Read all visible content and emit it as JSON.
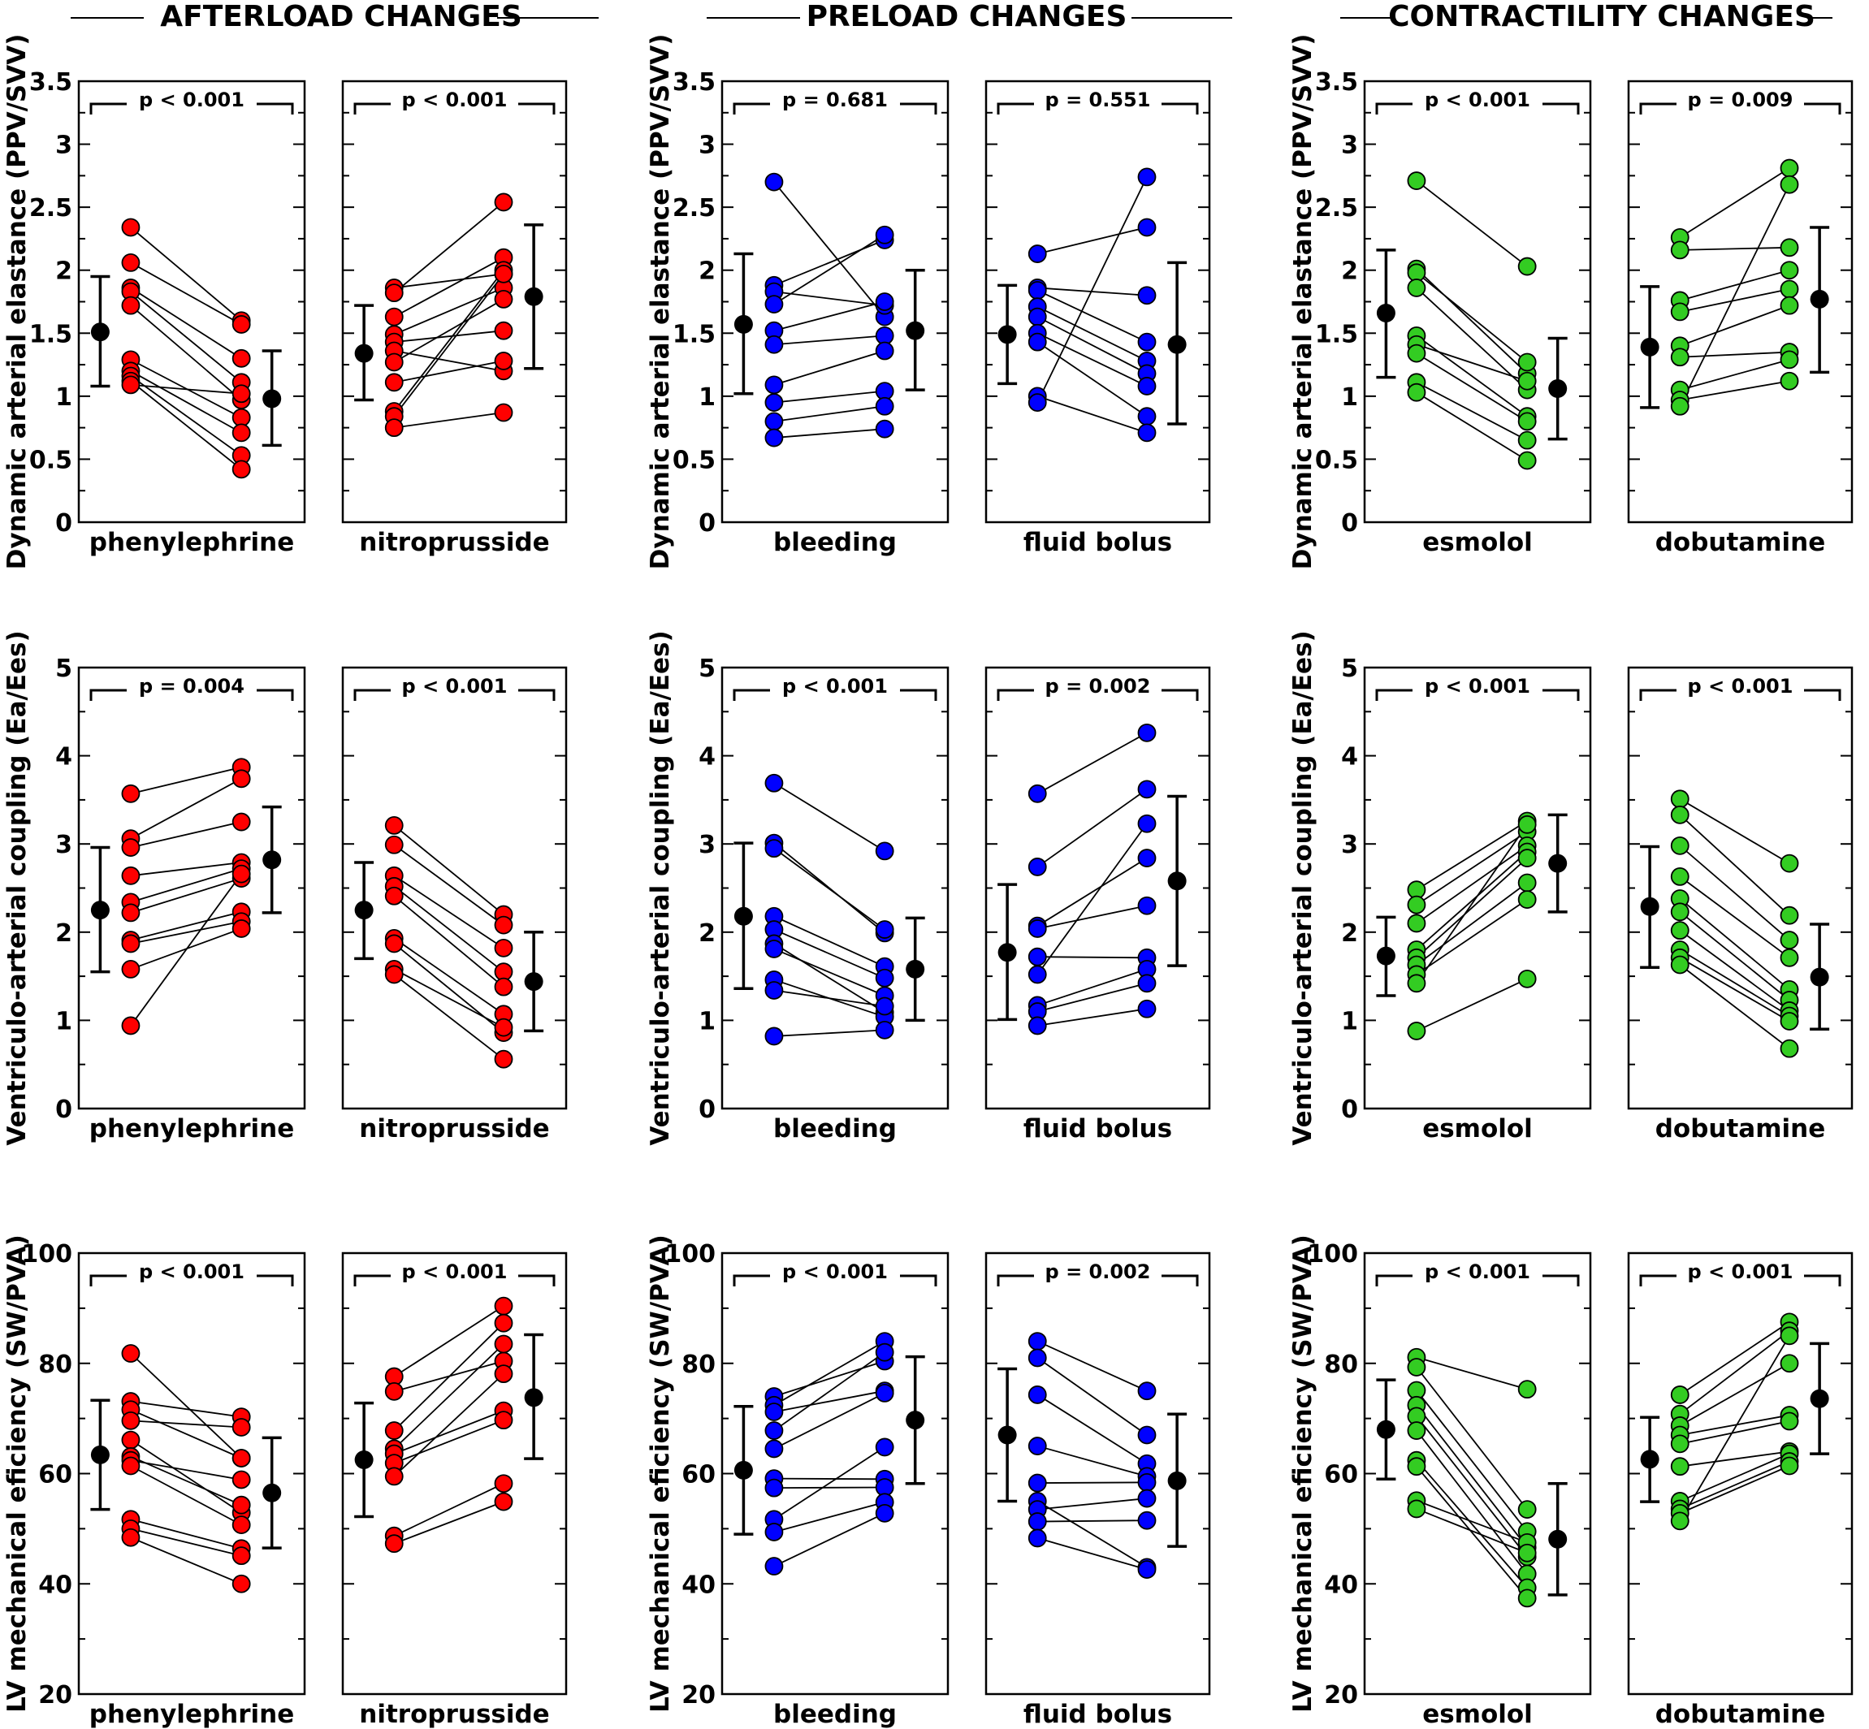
{
  "groups": [
    {
      "title": "AFTERLOAD CHANGES",
      "color": "#ff0000"
    },
    {
      "title": "PRELOAD CHANGES",
      "color": "#0000ff"
    },
    {
      "title": "CONTRACTILITY CHANGES",
      "color": "#33cc22"
    }
  ],
  "metrics": [
    {
      "ylabel": "Dynamic arterial elastance (PPV/SVV)",
      "ylim": [
        0,
        3.5
      ],
      "ticks": [
        0,
        0.5,
        1,
        1.5,
        2,
        2.5,
        3,
        3.5
      ],
      "tick_labels": [
        "0",
        "0.5",
        "1",
        "1.5",
        "2",
        "2.5",
        "3",
        "3.5"
      ]
    },
    {
      "ylabel": "Ventriculo-arterial coupling (Ea/Ees)",
      "ylim": [
        0,
        5
      ],
      "ticks": [
        0,
        1,
        2,
        3,
        4,
        5
      ],
      "tick_labels": [
        "0",
        "1",
        "2",
        "3",
        "4",
        "5"
      ]
    },
    {
      "ylabel": "LV mechanical eficiency (SW/PVA)",
      "ylim": [
        20,
        100
      ],
      "ticks": [
        20,
        40,
        60,
        80,
        100
      ],
      "tick_labels": [
        "20",
        "40",
        "60",
        "80",
        "100"
      ]
    }
  ],
  "chart_data": [
    {
      "type": "scatter",
      "group": "AFTERLOAD CHANGES",
      "intervention": "phenylephrine",
      "xlabel": "phenylephrine",
      "ylabel": "Dynamic arterial elastance (PPV/SVV)",
      "ylim": [
        0,
        3.5
      ],
      "p_value": "p < 0.001",
      "before": [
        2.34,
        2.06,
        1.86,
        1.83,
        1.72,
        1.29,
        1.2,
        1.16,
        1.12,
        1.09
      ],
      "after": [
        1.6,
        1.57,
        1.3,
        1.11,
        0.97,
        0.83,
        0.71,
        0.53,
        0.42,
        1.02
      ],
      "mean_before": 1.51,
      "sd_before": [
        1.08,
        1.95
      ],
      "mean_after": 0.98,
      "sd_after": [
        0.61,
        1.36
      ]
    },
    {
      "type": "scatter",
      "group": "AFTERLOAD CHANGES",
      "intervention": "nitroprusside",
      "xlabel": "nitroprusside",
      "ylabel": "Dynamic arterial elastance (PPV/SVV)",
      "ylim": [
        0,
        3.5
      ],
      "p_value": "p < 0.001",
      "before": [
        1.86,
        1.82,
        1.63,
        1.49,
        1.43,
        1.36,
        1.27,
        1.11,
        0.88,
        0.84,
        0.75
      ],
      "after": [
        1.97,
        2.54,
        2.1,
        1.86,
        1.52,
        1.2,
        1.77,
        1.28,
        2.0,
        1.97,
        0.87
      ],
      "mean_before": 1.34,
      "sd_before": [
        0.97,
        1.72
      ],
      "mean_after": 1.79,
      "sd_after": [
        1.22,
        2.36
      ]
    },
    {
      "type": "scatter",
      "group": "PRELOAD CHANGES",
      "intervention": "bleeding",
      "xlabel": "bleeding",
      "ylabel": "Dynamic arterial elastance (PPV/SVV)",
      "ylim": [
        0,
        3.5
      ],
      "p_value": "p = 0.681",
      "before": [
        2.7,
        1.88,
        1.83,
        1.73,
        1.52,
        1.41,
        1.09,
        0.95,
        0.8,
        0.67
      ],
      "after": [
        1.63,
        2.24,
        1.72,
        2.28,
        1.75,
        1.48,
        1.36,
        1.04,
        0.92,
        0.74
      ],
      "mean_before": 1.57,
      "sd_before": [
        1.02,
        2.13
      ],
      "mean_after": 1.52,
      "sd_after": [
        1.05,
        2.0
      ]
    },
    {
      "type": "scatter",
      "group": "PRELOAD CHANGES",
      "intervention": "fluid bolus",
      "xlabel": "fluid bolus",
      "ylabel": "Dynamic arterial elastance (PPV/SVV)",
      "ylim": [
        0,
        3.5
      ],
      "p_value": "p = 0.551",
      "before": [
        2.13,
        1.86,
        1.84,
        1.71,
        1.63,
        1.5,
        1.43,
        1.0,
        0.95
      ],
      "after": [
        2.34,
        1.8,
        1.43,
        1.28,
        1.18,
        1.08,
        0.84,
        0.71,
        2.74
      ],
      "mean_before": 1.49,
      "sd_before": [
        1.1,
        1.88
      ],
      "mean_after": 1.41,
      "sd_after": [
        0.78,
        2.06
      ]
    },
    {
      "type": "scatter",
      "group": "CONTRACTILITY CHANGES",
      "intervention": "esmolol",
      "xlabel": "esmolol",
      "ylabel": "Dynamic arterial elastance (PPV/SVV)",
      "ylim": [
        0,
        3.5
      ],
      "p_value": "p < 0.001",
      "before": [
        2.71,
        2.01,
        1.98,
        1.86,
        1.48,
        1.41,
        1.34,
        1.11,
        1.03
      ],
      "after": [
        2.03,
        1.18,
        1.27,
        1.05,
        0.84,
        1.12,
        0.8,
        0.65,
        0.49
      ],
      "mean_before": 1.66,
      "sd_before": [
        1.15,
        2.16
      ],
      "mean_after": 1.06,
      "sd_after": [
        0.66,
        1.46
      ]
    },
    {
      "type": "scatter",
      "group": "CONTRACTILITY CHANGES",
      "intervention": "dobutamine",
      "xlabel": "dobutamine",
      "ylabel": "Dynamic arterial elastance (PPV/SVV)",
      "ylim": [
        0,
        3.5
      ],
      "p_value": "p = 0.009",
      "before": [
        2.26,
        2.16,
        1.76,
        1.67,
        1.4,
        1.31,
        1.05,
        0.97,
        0.92
      ],
      "after": [
        2.81,
        2.18,
        2.0,
        1.85,
        1.72,
        1.35,
        1.29,
        1.12,
        2.68
      ],
      "mean_before": 1.39,
      "sd_before": [
        0.91,
        1.87
      ],
      "mean_after": 1.77,
      "sd_after": [
        1.19,
        2.34
      ]
    },
    {
      "type": "scatter",
      "group": "AFTERLOAD CHANGES",
      "intervention": "phenylephrine",
      "xlabel": "phenylephrine",
      "ylabel": "Ventriculo-arterial coupling (Ea/Ees)",
      "ylim": [
        0,
        5
      ],
      "p_value": "p = 0.004",
      "before": [
        3.57,
        3.06,
        2.96,
        2.64,
        2.34,
        2.22,
        1.91,
        1.87,
        1.58,
        0.94
      ],
      "after": [
        3.87,
        3.74,
        3.25,
        2.79,
        2.72,
        2.61,
        2.23,
        2.12,
        2.04,
        2.66
      ],
      "mean_before": 2.25,
      "sd_before": [
        1.55,
        2.96
      ],
      "mean_after": 2.82,
      "sd_after": [
        2.22,
        3.42
      ]
    },
    {
      "type": "scatter",
      "group": "AFTERLOAD CHANGES",
      "intervention": "nitroprusside",
      "xlabel": "nitroprusside",
      "ylabel": "Ventriculo-arterial coupling (Ea/Ees)",
      "ylim": [
        0,
        5
      ],
      "p_value": "p < 0.001",
      "before": [
        3.21,
        2.99,
        2.64,
        2.52,
        2.41,
        1.93,
        1.87,
        1.58,
        1.52
      ],
      "after": [
        2.2,
        2.08,
        1.82,
        1.55,
        1.38,
        1.07,
        0.86,
        0.92,
        0.56
      ],
      "mean_before": 2.25,
      "sd_before": [
        1.7,
        2.79
      ],
      "mean_after": 1.44,
      "sd_after": [
        0.88,
        2.0
      ]
    },
    {
      "type": "scatter",
      "group": "PRELOAD CHANGES",
      "intervention": "bleeding",
      "xlabel": "bleeding",
      "ylabel": "Ventriculo-arterial coupling (Ea/Ees)",
      "ylim": [
        0,
        5
      ],
      "p_value": "p < 0.001",
      "before": [
        3.69,
        3.01,
        2.95,
        2.18,
        2.03,
        1.87,
        1.81,
        1.46,
        1.34,
        0.82
      ],
      "after": [
        2.92,
        1.99,
        2.03,
        1.61,
        1.48,
        1.09,
        1.28,
        1.04,
        1.16,
        0.89
      ],
      "mean_before": 2.18,
      "sd_before": [
        1.36,
        3.01
      ],
      "mean_after": 1.58,
      "sd_after": [
        1.0,
        2.16
      ]
    },
    {
      "type": "scatter",
      "group": "PRELOAD CHANGES",
      "intervention": "fluid bolus",
      "xlabel": "fluid bolus",
      "ylabel": "Ventriculo-arterial coupling (Ea/Ees)",
      "ylim": [
        0,
        5
      ],
      "p_value": "p = 0.002",
      "before": [
        3.57,
        2.74,
        2.07,
        2.04,
        1.72,
        1.52,
        1.17,
        1.1,
        0.94
      ],
      "after": [
        4.26,
        3.62,
        2.84,
        2.3,
        1.71,
        3.23,
        1.58,
        1.42,
        1.13
      ],
      "mean_before": 1.77,
      "sd_before": [
        1.01,
        2.54
      ],
      "mean_after": 2.58,
      "sd_after": [
        1.62,
        3.54
      ]
    },
    {
      "type": "scatter",
      "group": "CONTRACTILITY CHANGES",
      "intervention": "esmolol",
      "xlabel": "esmolol",
      "ylabel": "Ventriculo-arterial coupling (Ea/Ees)",
      "ylim": [
        0,
        5
      ],
      "p_value": "p < 0.001",
      "before": [
        2.48,
        2.31,
        2.1,
        1.8,
        1.71,
        1.63,
        1.52,
        1.42,
        0.88
      ],
      "after": [
        3.26,
        3.14,
        2.98,
        2.91,
        2.84,
        2.56,
        2.37,
        3.22,
        1.47
      ],
      "mean_before": 1.73,
      "sd_before": [
        1.28,
        2.17
      ],
      "mean_after": 2.78,
      "sd_after": [
        2.23,
        3.33
      ]
    },
    {
      "type": "scatter",
      "group": "CONTRACTILITY CHANGES",
      "intervention": "dobutamine",
      "xlabel": "dobutamine",
      "ylabel": "Ventriculo-arterial coupling (Ea/Ees)",
      "ylim": [
        0,
        5
      ],
      "p_value": "p < 0.001",
      "before": [
        3.51,
        3.33,
        2.98,
        2.63,
        2.38,
        2.23,
        2.02,
        1.8,
        1.71,
        1.63
      ],
      "after": [
        2.78,
        2.19,
        1.91,
        1.71,
        1.35,
        1.23,
        1.11,
        1.05,
        0.99,
        0.68
      ],
      "mean_before": 2.29,
      "sd_before": [
        1.6,
        2.97
      ],
      "mean_after": 1.49,
      "sd_after": [
        0.9,
        2.09
      ]
    },
    {
      "type": "scatter",
      "group": "AFTERLOAD CHANGES",
      "intervention": "phenylephrine",
      "xlabel": "phenylephrine",
      "ylabel": "LV mechanical eficiency (SW/PVA)",
      "ylim": [
        20,
        100
      ],
      "p_value": "p < 0.001",
      "before": [
        81.8,
        73.1,
        71.6,
        69.6,
        66.1,
        63.1,
        62.4,
        61.4,
        51.7,
        50.0,
        48.4
      ],
      "after": [
        62.8,
        70.3,
        62.8,
        68.4,
        52.9,
        54.3,
        58.9,
        50.7,
        46.4,
        45.1,
        40.0
      ],
      "mean_before": 63.4,
      "sd_before": [
        53.5,
        73.3
      ],
      "mean_after": 56.5,
      "sd_after": [
        46.5,
        66.5
      ]
    },
    {
      "type": "scatter",
      "group": "AFTERLOAD CHANGES",
      "intervention": "nitroprusside",
      "xlabel": "nitroprusside",
      "ylabel": "LV mechanical eficiency (SW/PVA)",
      "ylim": [
        20,
        100
      ],
      "p_value": "p < 0.001",
      "before": [
        77.6,
        74.9,
        67.8,
        64.5,
        63.6,
        61.9,
        59.5,
        48.7,
        47.3
      ],
      "after": [
        90.4,
        80.4,
        87.3,
        83.5,
        71.4,
        69.7,
        78.1,
        58.2,
        54.9
      ],
      "mean_before": 62.5,
      "sd_before": [
        52.2,
        72.8
      ],
      "mean_after": 73.8,
      "sd_after": [
        62.7,
        85.2
      ]
    },
    {
      "type": "scatter",
      "group": "PRELOAD CHANGES",
      "intervention": "bleeding",
      "xlabel": "bleeding",
      "ylabel": "LV mechanical eficiency (SW/PVA)",
      "ylim": [
        20,
        100
      ],
      "p_value": "p < 0.001",
      "before": [
        74.0,
        72.4,
        71.2,
        67.8,
        64.5,
        59.1,
        57.4,
        51.7,
        49.4,
        43.2
      ],
      "after": [
        80.4,
        84.0,
        75.0,
        82.0,
        74.6,
        59.0,
        57.5,
        64.8,
        54.8,
        52.8
      ],
      "mean_before": 60.6,
      "sd_before": [
        49.0,
        72.2
      ],
      "mean_after": 69.7,
      "sd_after": [
        58.2,
        81.2
      ]
    },
    {
      "type": "scatter",
      "group": "PRELOAD CHANGES",
      "intervention": "fluid bolus",
      "xlabel": "fluid bolus",
      "ylabel": "LV mechanical eficiency (SW/PVA)",
      "ylim": [
        20,
        100
      ],
      "p_value": "p = 0.002",
      "before": [
        84.0,
        81.0,
        74.3,
        65.0,
        58.3,
        55.0,
        53.5,
        51.3,
        48.3
      ],
      "after": [
        75.0,
        67.0,
        61.8,
        59.5,
        58.4,
        43.0,
        55.5,
        51.5,
        42.6
      ],
      "mean_before": 67.0,
      "sd_before": [
        55.0,
        79.0
      ],
      "mean_after": 58.7,
      "sd_after": [
        46.8,
        70.8
      ]
    },
    {
      "type": "scatter",
      "group": "CONTRACTILITY CHANGES",
      "intervention": "esmolol",
      "xlabel": "esmolol",
      "ylabel": "LV mechanical eficiency (SW/PVA)",
      "ylim": [
        20,
        100
      ],
      "p_value": "p < 0.001",
      "before": [
        81.1,
        79.3,
        75.1,
        72.4,
        70.4,
        67.8,
        62.4,
        61.3,
        55.1,
        53.6
      ],
      "after": [
        75.3,
        53.5,
        49.5,
        46.6,
        44.9,
        41.8,
        39.3,
        37.4,
        47.5,
        45.6
      ],
      "mean_before": 68.0,
      "sd_before": [
        59.0,
        77.0
      ],
      "mean_after": 48.1,
      "sd_after": [
        38.0,
        58.2
      ]
    },
    {
      "type": "scatter",
      "group": "CONTRACTILITY CHANGES",
      "intervention": "dobutamine",
      "xlabel": "dobutamine",
      "ylabel": "LV mechanical eficiency (SW/PVA)",
      "ylim": [
        20,
        100
      ],
      "p_value": "p < 0.001",
      "before": [
        74.3,
        70.8,
        68.7,
        67.0,
        65.4,
        61.3,
        55.0,
        53.6,
        52.8,
        51.4
      ],
      "after": [
        87.5,
        85.9,
        80.0,
        70.6,
        69.5,
        64.0,
        63.6,
        62.2,
        61.4,
        85.0
      ],
      "mean_before": 62.6,
      "sd_before": [
        54.9,
        70.2
      ],
      "mean_after": 73.6,
      "sd_after": [
        63.6,
        83.6
      ]
    }
  ]
}
